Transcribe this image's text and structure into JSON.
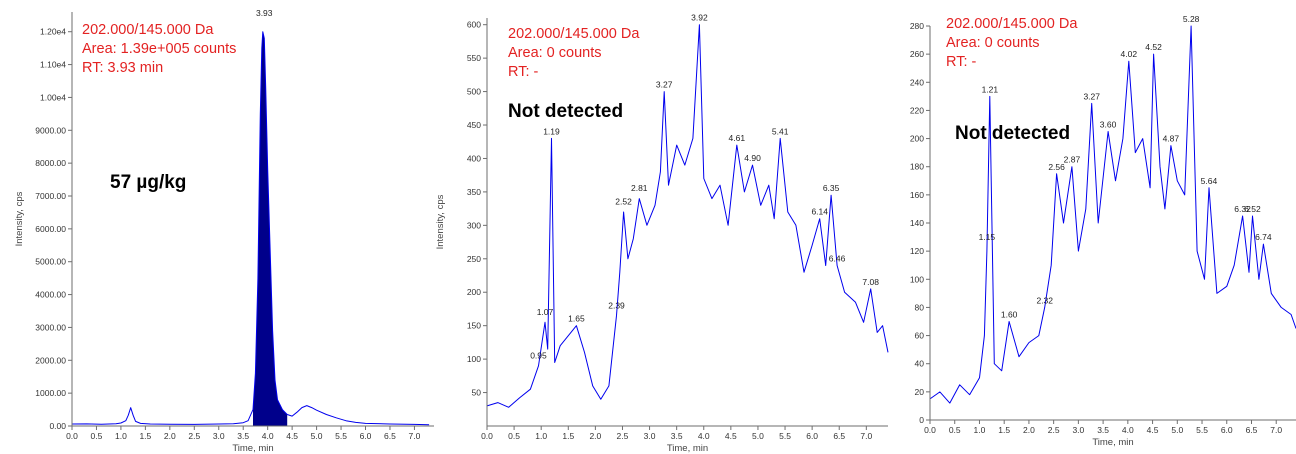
{
  "colors": {
    "trace": "#0000ee",
    "fill": "#00008b",
    "info_text": "#e32222",
    "axis": "#6e6e6e"
  },
  "chart_data": [
    {
      "type": "line",
      "fill_main_peak": true,
      "xlabel": "Time, min",
      "ylabel": "Intensity, cps",
      "xlim": [
        0,
        7.4
      ],
      "ylim": [
        0,
        12600
      ],
      "x_ticks": [
        0.0,
        0.5,
        1.0,
        1.5,
        2.0,
        2.5,
        3.0,
        3.5,
        4.0,
        4.5,
        5.0,
        5.5,
        6.0,
        6.5,
        7.0
      ],
      "x_tick_labels": [
        "0.0",
        "0.5",
        "1.0",
        "1.5",
        "2.0",
        "2.5",
        "3.0",
        "3.5",
        "4.0",
        "4.5",
        "5.0",
        "5.5",
        "6.0",
        "6.5",
        "7.0"
      ],
      "y_ticks": [
        0,
        1000,
        2000,
        3000,
        4000,
        5000,
        6000,
        7000,
        8000,
        9000,
        10000,
        11000,
        12000
      ],
      "y_tick_labels": [
        "0.00",
        "1000.00",
        "2000.00",
        "3000.00",
        "4000.00",
        "5000.00",
        "6000.00",
        "7000.00",
        "8000.00",
        "9000.00",
        "1.00e4",
        "1.10e4",
        "1.20e4"
      ],
      "info_lines": [
        "202.000/145.000 Da",
        "Area: 1.39e+005 counts",
        "RT: 3.93 min"
      ],
      "annotation": "57 µg/kg",
      "peak_labels": [
        {
          "x": 3.93,
          "y": 12350,
          "label": "3.93"
        }
      ],
      "x": [
        0.0,
        0.3,
        0.6,
        0.9,
        1.0,
        1.1,
        1.15,
        1.2,
        1.25,
        1.3,
        1.4,
        1.6,
        2.0,
        2.5,
        3.0,
        3.3,
        3.5,
        3.6,
        3.7,
        3.75,
        3.8,
        3.85,
        3.88,
        3.9,
        3.93,
        3.96,
        4.0,
        4.05,
        4.1,
        4.15,
        4.2,
        4.3,
        4.4,
        4.5,
        4.6,
        4.7,
        4.8,
        4.9,
        5.0,
        5.2,
        5.4,
        5.6,
        5.8,
        6.0,
        6.5,
        7.0,
        7.3
      ],
      "y": [
        60,
        65,
        55,
        70,
        90,
        160,
        330,
        560,
        330,
        140,
        80,
        60,
        55,
        50,
        60,
        70,
        100,
        160,
        500,
        1600,
        4500,
        9500,
        11500,
        12000,
        11800,
        10300,
        7800,
        5400,
        2900,
        1400,
        800,
        500,
        350,
        300,
        420,
        560,
        620,
        560,
        480,
        350,
        250,
        160,
        110,
        80,
        60,
        50,
        40
      ]
    },
    {
      "type": "line",
      "fill_main_peak": false,
      "xlabel": "Time, min",
      "ylabel": "Intensity, cps",
      "xlim": [
        0,
        7.4
      ],
      "ylim": [
        0,
        610
      ],
      "x_ticks": [
        0.0,
        0.5,
        1.0,
        1.5,
        2.0,
        2.5,
        3.0,
        3.5,
        4.0,
        4.5,
        5.0,
        5.5,
        6.0,
        6.5,
        7.0
      ],
      "x_tick_labels": [
        "0.0",
        "0.5",
        "1.0",
        "1.5",
        "2.0",
        "2.5",
        "3.0",
        "3.5",
        "4.0",
        "4.5",
        "5.0",
        "5.5",
        "6.0",
        "6.5",
        "7.0"
      ],
      "y_ticks": [
        50,
        100,
        150,
        200,
        250,
        300,
        350,
        400,
        450,
        500,
        550,
        600
      ],
      "y_tick_labels": [
        "50",
        "100",
        "150",
        "200",
        "250",
        "300",
        "350",
        "400",
        "450",
        "500",
        "550",
        "600"
      ],
      "info_lines": [
        "202.000/145.000 Da",
        "Area: 0 counts",
        "RT: -"
      ],
      "annotation": "Not detected",
      "peak_labels": [
        {
          "x": 0.95,
          "y": 95,
          "label": "0.95"
        },
        {
          "x": 1.07,
          "y": 160,
          "label": "1.07"
        },
        {
          "x": 1.19,
          "y": 430,
          "label": "1.19"
        },
        {
          "x": 1.65,
          "y": 150,
          "label": "1.65"
        },
        {
          "x": 2.39,
          "y": 170,
          "label": "2.39"
        },
        {
          "x": 2.52,
          "y": 325,
          "label": "2.52"
        },
        {
          "x": 2.81,
          "y": 345,
          "label": "2.81"
        },
        {
          "x": 3.27,
          "y": 500,
          "label": "3.27"
        },
        {
          "x": 3.92,
          "y": 600,
          "label": "3.92"
        },
        {
          "x": 4.61,
          "y": 420,
          "label": "4.61"
        },
        {
          "x": 4.9,
          "y": 390,
          "label": "4.90"
        },
        {
          "x": 5.41,
          "y": 430,
          "label": "5.41"
        },
        {
          "x": 6.14,
          "y": 310,
          "label": "6.14"
        },
        {
          "x": 6.35,
          "y": 345,
          "label": "6.35"
        },
        {
          "x": 6.46,
          "y": 240,
          "label": "6.46"
        },
        {
          "x": 7.08,
          "y": 205,
          "label": "7.08"
        }
      ],
      "x": [
        0.0,
        0.2,
        0.4,
        0.6,
        0.8,
        0.95,
        1.07,
        1.12,
        1.19,
        1.25,
        1.35,
        1.5,
        1.65,
        1.8,
        1.95,
        2.1,
        2.25,
        2.39,
        2.45,
        2.52,
        2.6,
        2.7,
        2.81,
        2.95,
        3.1,
        3.2,
        3.27,
        3.35,
        3.5,
        3.65,
        3.8,
        3.92,
        4.0,
        4.15,
        4.3,
        4.45,
        4.61,
        4.75,
        4.9,
        5.05,
        5.2,
        5.3,
        5.41,
        5.55,
        5.7,
        5.85,
        6.0,
        6.14,
        6.25,
        6.35,
        6.46,
        6.6,
        6.8,
        6.95,
        7.08,
        7.2,
        7.3,
        7.4
      ],
      "y": [
        30,
        35,
        28,
        42,
        55,
        90,
        155,
        115,
        430,
        95,
        120,
        135,
        150,
        110,
        60,
        40,
        60,
        165,
        230,
        320,
        250,
        280,
        340,
        300,
        330,
        380,
        500,
        360,
        420,
        390,
        430,
        600,
        370,
        340,
        360,
        300,
        420,
        350,
        390,
        330,
        360,
        310,
        430,
        320,
        300,
        230,
        270,
        310,
        240,
        345,
        240,
        200,
        185,
        155,
        205,
        140,
        150,
        110
      ]
    },
    {
      "type": "line",
      "fill_main_peak": false,
      "xlabel": "Time, min",
      "ylabel": "",
      "xlim": [
        0,
        7.4
      ],
      "ylim": [
        0,
        280
      ],
      "x_ticks": [
        0.0,
        0.5,
        1.0,
        1.5,
        2.0,
        2.5,
        3.0,
        3.5,
        4.0,
        4.5,
        5.0,
        5.5,
        6.0,
        6.5,
        7.0
      ],
      "x_tick_labels": [
        "0.0",
        "0.5",
        "1.0",
        "1.5",
        "2.0",
        "2.5",
        "3.0",
        "3.5",
        "4.0",
        "4.5",
        "5.0",
        "5.5",
        "6.0",
        "6.5",
        "7.0"
      ],
      "y_ticks": [
        0,
        20,
        40,
        60,
        80,
        100,
        120,
        140,
        160,
        180,
        200,
        220,
        240,
        260,
        280
      ],
      "y_tick_labels": [
        "0",
        "20",
        "40",
        "60",
        "80",
        "100",
        "120",
        "140",
        "160",
        "180",
        "200",
        "220",
        "240",
        "260",
        "280"
      ],
      "info_lines": [
        "202.000/145.000 Da",
        "Area: 0 counts",
        "RT: -"
      ],
      "annotation": "Not detected",
      "peak_labels": [
        {
          "x": 1.15,
          "y": 125,
          "label": "1.15"
        },
        {
          "x": 1.21,
          "y": 230,
          "label": "1.21"
        },
        {
          "x": 1.6,
          "y": 70,
          "label": "1.60"
        },
        {
          "x": 2.32,
          "y": 80,
          "label": "2.32"
        },
        {
          "x": 2.56,
          "y": 175,
          "label": "2.56"
        },
        {
          "x": 2.87,
          "y": 180,
          "label": "2.87"
        },
        {
          "x": 3.27,
          "y": 225,
          "label": "3.27"
        },
        {
          "x": 3.6,
          "y": 205,
          "label": "3.60"
        },
        {
          "x": 4.02,
          "y": 255,
          "label": "4.02"
        },
        {
          "x": 4.52,
          "y": 260,
          "label": "4.52"
        },
        {
          "x": 4.87,
          "y": 195,
          "label": "4.87"
        },
        {
          "x": 5.28,
          "y": 280,
          "label": "5.28"
        },
        {
          "x": 5.64,
          "y": 165,
          "label": "5.64"
        },
        {
          "x": 6.32,
          "y": 145,
          "label": "6.32"
        },
        {
          "x": 6.52,
          "y": 145,
          "label": "6.52"
        },
        {
          "x": 6.74,
          "y": 125,
          "label": "6.74"
        }
      ],
      "x": [
        0.0,
        0.2,
        0.4,
        0.6,
        0.8,
        1.0,
        1.1,
        1.15,
        1.21,
        1.3,
        1.45,
        1.6,
        1.8,
        2.0,
        2.2,
        2.32,
        2.45,
        2.56,
        2.7,
        2.87,
        3.0,
        3.15,
        3.27,
        3.4,
        3.6,
        3.75,
        3.9,
        4.02,
        4.15,
        4.3,
        4.45,
        4.52,
        4.65,
        4.75,
        4.87,
        5.0,
        5.15,
        5.28,
        5.4,
        5.55,
        5.64,
        5.8,
        6.0,
        6.15,
        6.32,
        6.45,
        6.52,
        6.65,
        6.74,
        6.9,
        7.1,
        7.3,
        7.4
      ],
      "y": [
        15,
        20,
        12,
        25,
        18,
        30,
        60,
        120,
        230,
        40,
        35,
        70,
        45,
        55,
        60,
        80,
        110,
        175,
        140,
        180,
        120,
        150,
        225,
        140,
        205,
        170,
        200,
        255,
        190,
        200,
        165,
        260,
        180,
        150,
        195,
        170,
        160,
        280,
        120,
        100,
        165,
        90,
        95,
        110,
        145,
        105,
        145,
        100,
        125,
        90,
        80,
        75,
        65
      ]
    }
  ]
}
